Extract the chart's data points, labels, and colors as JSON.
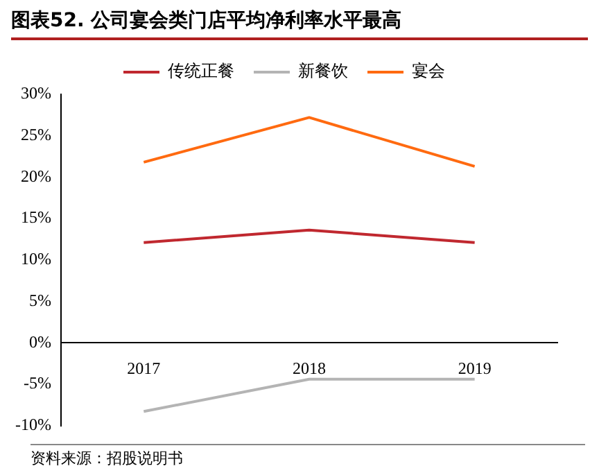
{
  "chart_data": {
    "type": "line",
    "title": "图表52. 公司宴会类门店平均净利率水平最高",
    "categories": [
      "2017",
      "2018",
      "2019"
    ],
    "series": [
      {
        "name": "传统正餐",
        "color": "#c0282f",
        "values": [
          12.1,
          13.6,
          12.1
        ]
      },
      {
        "name": "新餐饮",
        "color": "#b4b4b4",
        "values": [
          -8.3,
          -4.4,
          -4.4
        ]
      },
      {
        "name": "宴会",
        "color": "#ff6a10",
        "values": [
          21.8,
          27.2,
          21.3
        ]
      }
    ],
    "ylim": [
      -10,
      30
    ],
    "yticks": [
      {
        "value": -10,
        "label": "-10%"
      },
      {
        "value": -5,
        "label": "-5%"
      },
      {
        "value": 0,
        "label": "0%"
      },
      {
        "value": 5,
        "label": "5%"
      },
      {
        "value": 10,
        "label": "10%"
      },
      {
        "value": 15,
        "label": "15%"
      },
      {
        "value": 20,
        "label": "20%"
      },
      {
        "value": 25,
        "label": "25%"
      },
      {
        "value": 30,
        "label": "30%"
      }
    ],
    "grid": false,
    "legend": "top",
    "marker": "none",
    "line_style": "solid",
    "annotations": [
      "资料来源：招股说明书"
    ]
  }
}
